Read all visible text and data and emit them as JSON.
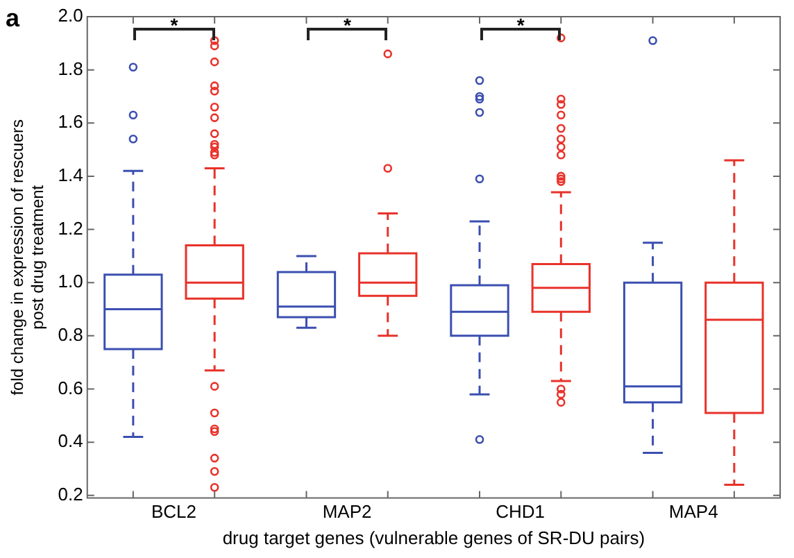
{
  "chart_data": {
    "type": "box",
    "categories": [
      "BCL2",
      "MAP2",
      "CHD1",
      "MAP4"
    ],
    "xlabel": "drug target genes (vulnerable genes of SR-DU pairs)",
    "ylabel": "fold change in expression of rescuers\npost drug treatment",
    "ylim": [
      0.19,
      2.0
    ],
    "yticks": [
      0.2,
      0.4,
      0.6,
      0.8,
      {
        "value": 1,
        "label": "1.0"
      },
      1.2,
      1.4,
      1.6,
      1.8,
      {
        "value": 2,
        "label": "2.0"
      }
    ],
    "grid": false,
    "annotations": [
      "a",
      "*",
      "*",
      "*"
    ],
    "series": [
      {
        "color": "#3b4fb0",
        "boxes": [
          {
            "low": 0.42,
            "q1": 0.75,
            "median": 0.9,
            "q3": 1.03,
            "high": 1.42,
            "outliers": [
              1.81,
              1.63,
              1.54
            ]
          },
          {
            "low": 0.83,
            "q1": 0.87,
            "median": 0.91,
            "q3": 1.04,
            "high": 1.1
          },
          {
            "low": 0.58,
            "q1": 0.8,
            "median": 0.89,
            "q3": 0.99,
            "high": 1.23,
            "outliers": [
              1.76,
              1.7,
              1.69,
              1.64,
              1.39,
              0.41
            ]
          },
          {
            "low": 0.36,
            "q1": 0.55,
            "median": 0.61,
            "q3": 1.0,
            "high": 1.15,
            "outliers": [
              1.91
            ]
          }
        ]
      },
      {
        "color": "#e8322a",
        "boxes": [
          {
            "low": 0.67,
            "q1": 0.94,
            "median": 1.0,
            "q3": 1.14,
            "high": 1.43,
            "outliers": [
              1.91,
              1.89,
              1.83,
              1.74,
              1.72,
              1.66,
              1.62,
              1.56,
              1.52,
              1.51,
              1.49,
              1.48,
              0.61,
              0.51,
              0.45,
              0.44,
              0.34,
              0.29,
              0.23
            ]
          },
          {
            "low": 0.8,
            "q1": 0.95,
            "median": 1.0,
            "q3": 1.11,
            "high": 1.26,
            "outliers": [
              1.86,
              1.43
            ]
          },
          {
            "low": 0.63,
            "q1": 0.89,
            "median": 0.98,
            "q3": 1.07,
            "high": 1.34,
            "outliers": [
              1.92,
              1.69,
              1.67,
              1.63,
              1.58,
              1.54,
              1.51,
              1.48,
              1.4,
              1.39,
              1.38,
              0.6,
              0.58,
              0.55
            ]
          },
          {
            "low": 0.24,
            "q1": 0.51,
            "median": 0.86,
            "q3": 1.0,
            "high": 1.46
          }
        ]
      }
    ]
  }
}
